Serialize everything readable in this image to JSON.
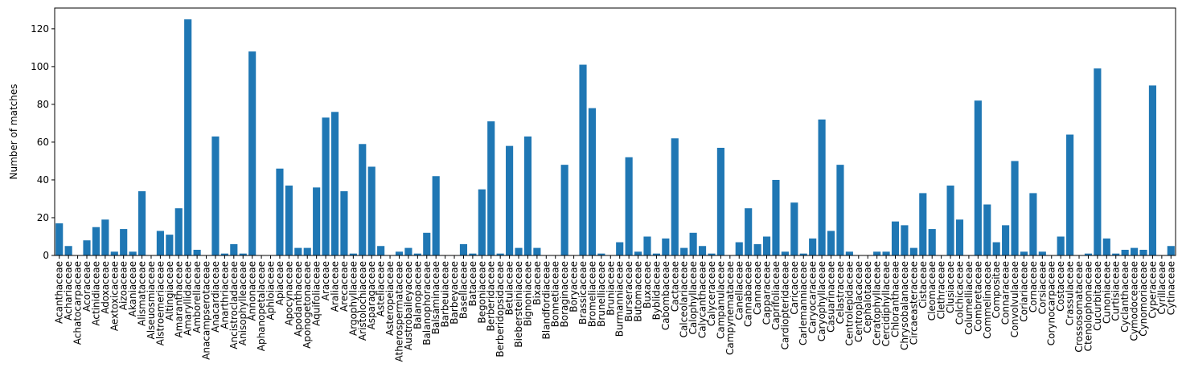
{
  "chart_data": {
    "type": "bar",
    "title": "",
    "xlabel": "",
    "ylabel": "Number of matches",
    "ylim": [
      0,
      131
    ],
    "yticks": [
      0,
      20,
      40,
      60,
      80,
      100,
      120
    ],
    "bar_color": "#1f77b4",
    "grid": false,
    "categories": [
      "Acanthaceae",
      "Achariaceae",
      "Achatocarpaceae",
      "Acoraceae",
      "Actinidiaceae",
      "Adoxaceae",
      "Aextoxicaceae",
      "Aizoaceae",
      "Akaniaceae",
      "Alismataceae",
      "Alseuosmiaceae",
      "Alstroemeriaceae",
      "Altingiaceae",
      "Amaranthaceae",
      "Amaryllidaceae",
      "Amborellaceae",
      "Anacampserotaceae",
      "Anacardiaceae",
      "Anarthriaceae",
      "Ancistrocladaceae",
      "Anisophylleaceae",
      "Annonaceae",
      "Aphanopetalaceae",
      "Aphloiaceae",
      "Apiaceae",
      "Apocynaceae",
      "Apodanthaceae",
      "Aponogetonaceae",
      "Aquifoliaceae",
      "Araceae",
      "Araliaceae",
      "Arecaceae",
      "Argophyllaceae",
      "Aristolochiaceae",
      "Asparagaceae",
      "Asteliaceae",
      "Asteropeiaceae",
      "Atherospermataceae",
      "Austrobaileyaceae",
      "Balanopaceae",
      "Balanophoraceae",
      "Balsaminaceae",
      "Barbeuiaceae",
      "Barbeyaceae",
      "Basellaceae",
      "Bataceae",
      "Begoniaceae",
      "Berberidaceae",
      "Berberidopsidaceae",
      "Betulaceae",
      "Biebersteiniaceae",
      "Bignoniaceae",
      "Bixaceae",
      "Blandfordiaceae",
      "Bonnetiaceae",
      "Boraginaceae",
      "Boryaceae",
      "Brassicaceae",
      "Bromeliaceae",
      "Brunelliaceae",
      "Bruniaceae",
      "Burmanniaceae",
      "Burseraceae",
      "Butomaceae",
      "Buxaceae",
      "Byblidaceae",
      "Cabombaceae",
      "Cactaceae",
      "Calceolariaceae",
      "Calophyllaceae",
      "Calycanthaceae",
      "Calyceraceae",
      "Campanulaceae",
      "Campynemataceae",
      "Canellaceae",
      "Cannabaceae",
      "Cannaceae",
      "Capparaceae",
      "Caprifoliaceae",
      "Cardiopteridaceae",
      "Caricaceae",
      "Carlemanniaceae",
      "Caryocaraceae",
      "Caryophyllaceae",
      "Casuarinaceae",
      "Celastraceae",
      "Centrolepidaceae",
      "Centroplacaceae",
      "Cephalotaceae",
      "Ceratophyllaceae",
      "Cercidiphyllaceae",
      "Chloranthaceae",
      "Chrysobalanaceae",
      "Circaeasteraceae",
      "Cistaceae",
      "Cleomaceae",
      "Clethraceae",
      "Clusiaceae",
      "Colchicaceae",
      "Columelliaceae",
      "Combretaceae",
      "Commelinaceae",
      "Compositae",
      "Connaraceae",
      "Convolvulaceae",
      "Coriariaceae",
      "Cornaceae",
      "Corsiaceae",
      "Corynocarpaceae",
      "Costaceae",
      "Crassulaceae",
      "Crossosomataceae",
      "Ctenolophonaceae",
      "Cucurbitaceae",
      "Cunoniaceae",
      "Curtisiaceae",
      "Cyclanthaceae",
      "Cymodoceaceae",
      "Cynomoriaceae",
      "Cyperaceae",
      "Cyrillaceae",
      "Cytinaceae"
    ],
    "values": [
      17,
      5,
      0,
      8,
      15,
      19,
      2,
      14,
      2,
      34,
      0,
      13,
      11,
      25,
      125,
      3,
      0,
      63,
      1,
      6,
      1,
      108,
      0,
      0,
      46,
      37,
      4,
      4,
      36,
      73,
      76,
      34,
      1,
      59,
      47,
      5,
      0,
      2,
      4,
      1,
      12,
      42,
      0,
      0,
      6,
      1,
      35,
      71,
      1,
      58,
      4,
      63,
      4,
      0,
      0,
      48,
      0,
      101,
      78,
      1,
      0,
      7,
      52,
      2,
      10,
      1,
      9,
      62,
      4,
      12,
      5,
      1,
      57,
      0,
      7,
      25,
      6,
      10,
      40,
      2,
      28,
      1,
      9,
      72,
      13,
      48,
      2,
      0,
      0,
      2,
      2,
      18,
      16,
      4,
      33,
      14,
      0,
      37,
      19,
      0,
      82,
      27,
      7,
      16,
      50,
      2,
      33,
      2,
      0,
      10,
      64,
      0,
      1,
      99,
      9,
      1,
      3,
      4,
      3,
      90,
      0,
      5
    ]
  }
}
